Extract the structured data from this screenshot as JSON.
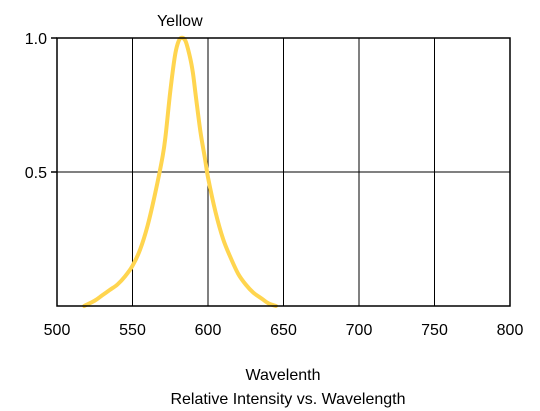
{
  "chart_data": {
    "type": "line",
    "title": "Relative Intensity vs. Wavelength",
    "xlabel": "Wavelenth",
    "ylabel": "",
    "xlim": [
      500,
      800
    ],
    "ylim": [
      0,
      1.0
    ],
    "x_ticks": [
      500,
      550,
      600,
      650,
      700,
      750,
      800
    ],
    "x_tick_labels": [
      "500",
      "550",
      "600",
      "650",
      "700",
      "750",
      "800"
    ],
    "y_ticks": [
      0.5,
      1.0
    ],
    "y_tick_labels": [
      "0.5",
      "1.0"
    ],
    "grid": true,
    "series": [
      {
        "name": "Yellow",
        "color": "#FFD54F",
        "x": [
          518,
          525,
          530,
          535,
          540,
          545,
          550,
          555,
          560,
          565,
          570,
          572,
          575,
          578,
          580,
          582,
          585,
          588,
          590,
          592,
          595,
          598,
          600,
          605,
          610,
          615,
          620,
          625,
          630,
          635,
          640,
          645
        ],
        "y": [
          0.0,
          0.02,
          0.04,
          0.06,
          0.08,
          0.11,
          0.15,
          0.21,
          0.3,
          0.42,
          0.56,
          0.64,
          0.8,
          0.93,
          0.98,
          1.0,
          0.99,
          0.93,
          0.87,
          0.78,
          0.65,
          0.55,
          0.48,
          0.35,
          0.25,
          0.18,
          0.12,
          0.08,
          0.05,
          0.03,
          0.01,
          0.0
        ]
      }
    ]
  }
}
